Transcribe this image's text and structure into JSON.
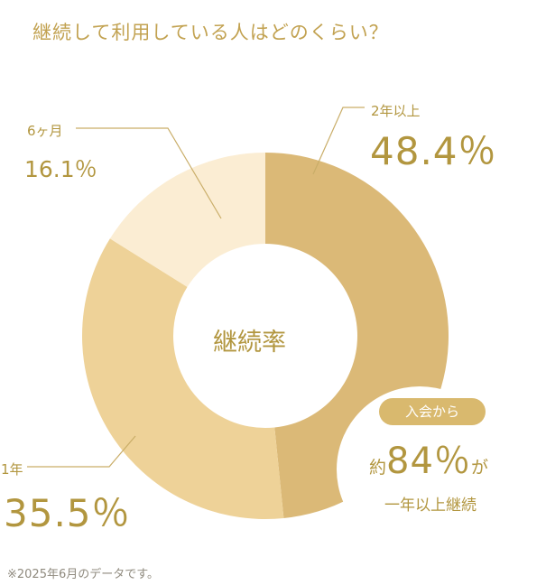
{
  "title": "継続して利用している人はどのくらい？",
  "chart_data": {
    "type": "pie",
    "categories": [
      "2年以上",
      "1年",
      "6ヶ月"
    ],
    "values": [
      48.4,
      35.5,
      16.1
    ],
    "value_labels": [
      "48.4％",
      "35.5％",
      "16.1％"
    ],
    "colors": [
      "#dbb977",
      "#eed298",
      "#fbedd3"
    ],
    "center_label": "継続率"
  },
  "callout": {
    "badge": "入会から",
    "prefix": "約",
    "number": "84％",
    "suffix": "が",
    "subtext": "一年以上継続"
  },
  "footnote": "※2025年6月のデータです。"
}
